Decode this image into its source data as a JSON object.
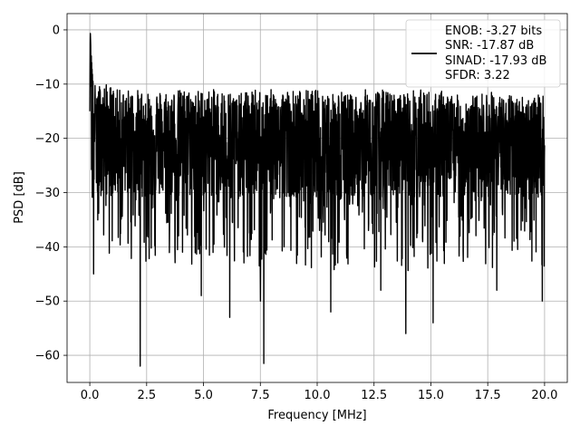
{
  "chart_data": {
    "type": "line",
    "title": "",
    "xlabel": "Frequency [MHz]",
    "ylabel": "PSD [dB]",
    "xlim": [
      -1.0,
      21.0
    ],
    "ylim": [
      -65,
      3
    ],
    "xticks": [
      0.0,
      2.5,
      5.0,
      7.5,
      10.0,
      12.5,
      15.0,
      17.5,
      20.0
    ],
    "xtick_labels": [
      "0.0",
      "2.5",
      "5.0",
      "7.5",
      "10.0",
      "12.5",
      "15.0",
      "17.5",
      "20.0"
    ],
    "yticks": [
      0,
      -10,
      -20,
      -30,
      -40,
      -50,
      -60
    ],
    "ytick_labels": [
      "0",
      "−10",
      "−20",
      "−30",
      "−40",
      "−50",
      "−60"
    ],
    "grid": true,
    "legend_position": "top-right",
    "series": [
      {
        "color": "#000000",
        "x": [
          0.0,
          0.02,
          0.05,
          0.1,
          0.15,
          0.2,
          0.3,
          0.5,
          0.8,
          1.2,
          1.5,
          2.0,
          2.2,
          2.25,
          2.4,
          3.0,
          3.5,
          4.0,
          4.5,
          4.9,
          5.5,
          6.0,
          6.15,
          6.5,
          7.0,
          7.4,
          7.6,
          7.7,
          8.0,
          8.5,
          9.0,
          9.5,
          10.0,
          10.5,
          10.6,
          11.0,
          11.5,
          12.0,
          12.5,
          13.0,
          13.5,
          13.9,
          14.5,
          15.0,
          15.1,
          15.5,
          16.0,
          16.5,
          17.0,
          17.5,
          18.0,
          18.5,
          19.0,
          19.5,
          19.9,
          20.0
        ],
        "y": [
          -15,
          0,
          -4,
          -8,
          -12,
          -14,
          -16,
          -18,
          -18,
          -19,
          -18,
          -19,
          -20,
          -20,
          -19,
          -20,
          -20,
          -19,
          -20,
          -20,
          -19,
          -20,
          -21,
          -20,
          -20,
          -20,
          -21,
          -20,
          -20,
          -19,
          -20,
          -20,
          -20,
          -20,
          -21,
          -20,
          -20,
          -20,
          -21,
          -20,
          -20,
          -21,
          -20,
          -20,
          -21,
          -20,
          -20,
          -21,
          -20,
          -20,
          -20,
          -21,
          -20,
          -20,
          -21,
          -20
        ],
        "peak_envelope": [
          -15,
          0,
          -4,
          -6,
          -8,
          -10,
          -10,
          -10,
          -10,
          -11,
          -11,
          -11,
          -11,
          -11,
          -11,
          -11,
          -11,
          -11,
          -11,
          -11,
          -11,
          -11,
          -11,
          -12,
          -11,
          -11,
          -11,
          -11,
          -11,
          -11,
          -11,
          -11,
          -11,
          -11,
          -11,
          -11,
          -12,
          -11,
          -11,
          -11,
          -12,
          -11,
          -11,
          -11,
          -12,
          -11,
          -12,
          -12,
          -12,
          -11,
          -12,
          -12,
          -12,
          -12,
          -12,
          -12
        ],
        "notable_dips": [
          {
            "x": 0.17,
            "y": -45
          },
          {
            "x": 2.22,
            "y": -62
          },
          {
            "x": 4.9,
            "y": -49
          },
          {
            "x": 6.15,
            "y": -53
          },
          {
            "x": 7.5,
            "y": -50
          },
          {
            "x": 7.65,
            "y": -61.5
          },
          {
            "x": 10.6,
            "y": -52
          },
          {
            "x": 12.8,
            "y": -48
          },
          {
            "x": 13.9,
            "y": -56
          },
          {
            "x": 15.1,
            "y": -54
          },
          {
            "x": 17.9,
            "y": -48
          },
          {
            "x": 19.9,
            "y": -50
          }
        ]
      }
    ],
    "legend": {
      "lines": [
        "ENOB: -3.27 bits",
        "SNR: -17.87 dB",
        "SINAD: -17.93 dB",
        "SFDR: 3.22"
      ]
    }
  }
}
